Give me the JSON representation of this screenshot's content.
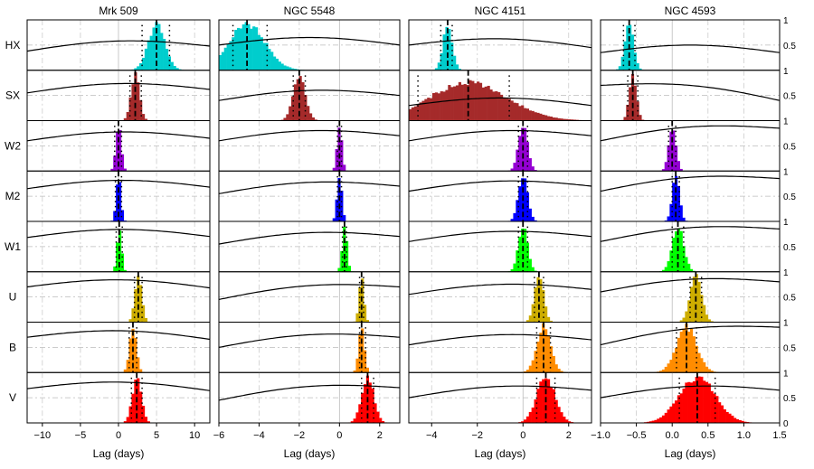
{
  "figure": {
    "ylabel_ticks": [
      "0",
      "0.5",
      "1"
    ]
  },
  "chart_data": {
    "type": "histogram-grid",
    "bands": [
      "HX",
      "SX",
      "W2",
      "M2",
      "W1",
      "U",
      "B",
      "V"
    ],
    "band_colors": {
      "HX": "#00CDCD",
      "SX": "#A52A2A",
      "W2": "#9400D3",
      "M2": "#0000FF",
      "W1": "#00FF00",
      "U": "#CDAD00",
      "B": "#FF8C00",
      "V": "#FF0000"
    },
    "y_range": [
      0,
      1
    ],
    "y_ticks_right": [
      0,
      0.5,
      1
    ],
    "grid": "dash-dot",
    "columns": [
      {
        "title": "Mrk 509",
        "xlabel": "Lag (days)",
        "xlim": [
          -12,
          12
        ],
        "xticks": [
          -10,
          -5,
          0,
          5,
          10
        ],
        "ccf": [
          [
            0.38,
            0.48
          ],
          [
            0.55,
            0.62
          ],
          [
            0.6,
            0.65
          ],
          [
            0.65,
            0.68
          ],
          [
            0.68,
            0.7
          ],
          [
            0.7,
            0.68
          ],
          [
            0.7,
            0.66
          ],
          [
            0.68,
            0.64
          ],
          [
            0.65,
            0.62
          ],
          [
            0.6,
            0.6
          ],
          [
            0.55,
            0.55
          ],
          [
            0.52,
            0.5
          ],
          [
            0.5,
            0.46
          ],
          [
            0.52,
            0.44
          ],
          [
            0.55,
            0.42
          ],
          [
            0.58,
            0.45
          ]
        ],
        "histograms": [
          {
            "band": "HX",
            "center": 5.0,
            "sigma": 1.1,
            "lo": 3.1,
            "hi": 6.7
          },
          {
            "band": "SX",
            "center": 2.2,
            "sigma": 0.55,
            "lo": 1.5,
            "hi": 3.0
          },
          {
            "band": "W2",
            "center": 0.0,
            "sigma": 0.35,
            "lo": -0.5,
            "hi": 0.4
          },
          {
            "band": "M2",
            "center": 0.0,
            "sigma": 0.3,
            "lo": -0.4,
            "hi": 0.4
          },
          {
            "band": "W1",
            "center": 0.1,
            "sigma": 0.3,
            "lo": -0.3,
            "hi": 0.5
          },
          {
            "band": "U",
            "center": 2.6,
            "sigma": 0.45,
            "lo": 2.1,
            "hi": 3.1
          },
          {
            "band": "B",
            "center": 1.9,
            "sigma": 0.45,
            "lo": 1.4,
            "hi": 2.4
          },
          {
            "band": "V",
            "center": 2.4,
            "sigma": 0.6,
            "lo": 1.7,
            "hi": 3.1
          }
        ]
      },
      {
        "title": "NGC 5548",
        "xlabel": "Lag (days)",
        "xlim": [
          -6,
          3
        ],
        "xticks": [
          -6,
          -4,
          -2,
          0,
          2
        ],
        "ccf": [
          [
            0.5,
            0.5
          ],
          [
            0.4,
            0.5
          ],
          [
            0.6,
            0.7
          ],
          [
            0.55,
            0.7
          ],
          [
            0.55,
            0.7
          ],
          [
            0.45,
            0.7
          ],
          [
            0.5,
            0.7
          ],
          [
            0.45,
            0.7
          ],
          [
            0.45,
            0.65
          ],
          [
            0.4,
            0.65
          ],
          [
            0.3,
            0.6
          ],
          [
            0.25,
            0.55
          ],
          [
            0.2,
            0.55
          ],
          [
            0.15,
            0.5
          ],
          [
            0.1,
            0.45
          ],
          [
            0.05,
            0.4
          ]
        ],
        "histograms": [
          {
            "band": "HX",
            "center": -4.6,
            "sigma": 0.9,
            "lo": -5.3,
            "hi": -3.6
          },
          {
            "band": "SX",
            "center": -2.0,
            "sigma": 0.3,
            "lo": -2.3,
            "hi": -1.7
          },
          {
            "band": "W2",
            "center": 0.0,
            "sigma": 0.12,
            "lo": -0.1,
            "hi": 0.1
          },
          {
            "band": "M2",
            "center": 0.0,
            "sigma": 0.12,
            "lo": -0.1,
            "hi": 0.1
          },
          {
            "band": "W1",
            "center": 0.25,
            "sigma": 0.12,
            "lo": 0.15,
            "hi": 0.35
          },
          {
            "band": "U",
            "center": 1.1,
            "sigma": 0.12,
            "lo": 1.0,
            "hi": 1.2
          },
          {
            "band": "B",
            "center": 1.1,
            "sigma": 0.14,
            "lo": 1.0,
            "hi": 1.3
          },
          {
            "band": "V",
            "center": 1.4,
            "sigma": 0.3,
            "lo": 1.1,
            "hi": 1.7
          }
        ]
      },
      {
        "title": "NGC 4151",
        "xlabel": "Lag (days)",
        "xlim": [
          -5,
          3
        ],
        "xticks": [
          -4,
          -2,
          0,
          2
        ],
        "ccf": [
          [
            0.5,
            0.45
          ],
          [
            0.3,
            0.3
          ],
          [
            0.6,
            0.7
          ],
          [
            0.6,
            0.7
          ],
          [
            0.6,
            0.7
          ],
          [
            0.55,
            0.65
          ],
          [
            0.55,
            0.65
          ],
          [
            0.5,
            0.65
          ],
          [
            0.4,
            0.7
          ],
          [
            0.35,
            0.7
          ],
          [
            0.3,
            0.5
          ],
          [
            0.25,
            0.45
          ],
          [
            0.3,
            0.45
          ],
          [
            0.3,
            0.45
          ],
          [
            0.35,
            0.45
          ],
          [
            0.35,
            0.45
          ]
        ],
        "histograms": [
          {
            "band": "HX",
            "center": -3.3,
            "sigma": 0.2,
            "lo": -3.6,
            "hi": -3.1
          },
          {
            "band": "SX",
            "center": -2.4,
            "sigma": 1.7,
            "lo": -4.6,
            "hi": -0.6,
            "peak": 0.82
          },
          {
            "band": "W2",
            "center": 0.0,
            "sigma": 0.2,
            "lo": -0.2,
            "hi": 0.2
          },
          {
            "band": "M2",
            "center": 0.0,
            "sigma": 0.2,
            "lo": -0.2,
            "hi": 0.2
          },
          {
            "band": "W1",
            "center": 0.0,
            "sigma": 0.2,
            "lo": -0.2,
            "hi": 0.2
          },
          {
            "band": "U",
            "center": 0.7,
            "sigma": 0.2,
            "lo": 0.5,
            "hi": 0.9
          },
          {
            "band": "B",
            "center": 0.9,
            "sigma": 0.3,
            "lo": 0.6,
            "hi": 1.2
          },
          {
            "band": "V",
            "center": 1.0,
            "sigma": 0.4,
            "lo": 0.6,
            "hi": 1.4
          }
        ]
      },
      {
        "title": "NGC 4593",
        "xlabel": "Lag (days)",
        "xlim": [
          -1.0,
          1.5
        ],
        "xticks": [
          -1.0,
          -0.5,
          0.0,
          0.5,
          1.0,
          1.5
        ],
        "ccf": [
          [
            0.35,
            0.35
          ],
          [
            0.7,
            0.4
          ],
          [
            0.6,
            0.85
          ],
          [
            0.6,
            0.85
          ],
          [
            0.6,
            0.85
          ],
          [
            0.6,
            0.8
          ],
          [
            0.55,
            0.9
          ],
          [
            0.5,
            0.65
          ],
          [
            0.45,
            0.25
          ],
          [
            0.5,
            0.55
          ],
          [
            0.55,
            0.5
          ],
          [
            0.55,
            0.5
          ],
          [
            0.5,
            0.55
          ],
          [
            0.55,
            0.55
          ],
          [
            0.5,
            0.65
          ],
          [
            0.45,
            0.6
          ]
        ],
        "histograms": [
          {
            "band": "HX",
            "center": -0.6,
            "sigma": 0.06,
            "lo": -0.68,
            "hi": -0.52
          },
          {
            "band": "SX",
            "center": -0.55,
            "sigma": 0.05,
            "lo": -0.62,
            "hi": -0.48
          },
          {
            "band": "W2",
            "center": 0.0,
            "sigma": 0.05,
            "lo": -0.05,
            "hi": 0.05
          },
          {
            "band": "M2",
            "center": 0.05,
            "sigma": 0.05,
            "lo": 0.0,
            "hi": 0.1
          },
          {
            "band": "W1",
            "center": 0.08,
            "sigma": 0.08,
            "lo": 0.0,
            "hi": 0.16
          },
          {
            "band": "U",
            "center": 0.33,
            "sigma": 0.08,
            "lo": 0.25,
            "hi": 0.41
          },
          {
            "band": "B",
            "center": 0.2,
            "sigma": 0.14,
            "lo": 0.06,
            "hi": 0.34
          },
          {
            "band": "V",
            "center": 0.35,
            "sigma": 0.25,
            "lo": 0.1,
            "hi": 0.6
          }
        ]
      }
    ]
  }
}
